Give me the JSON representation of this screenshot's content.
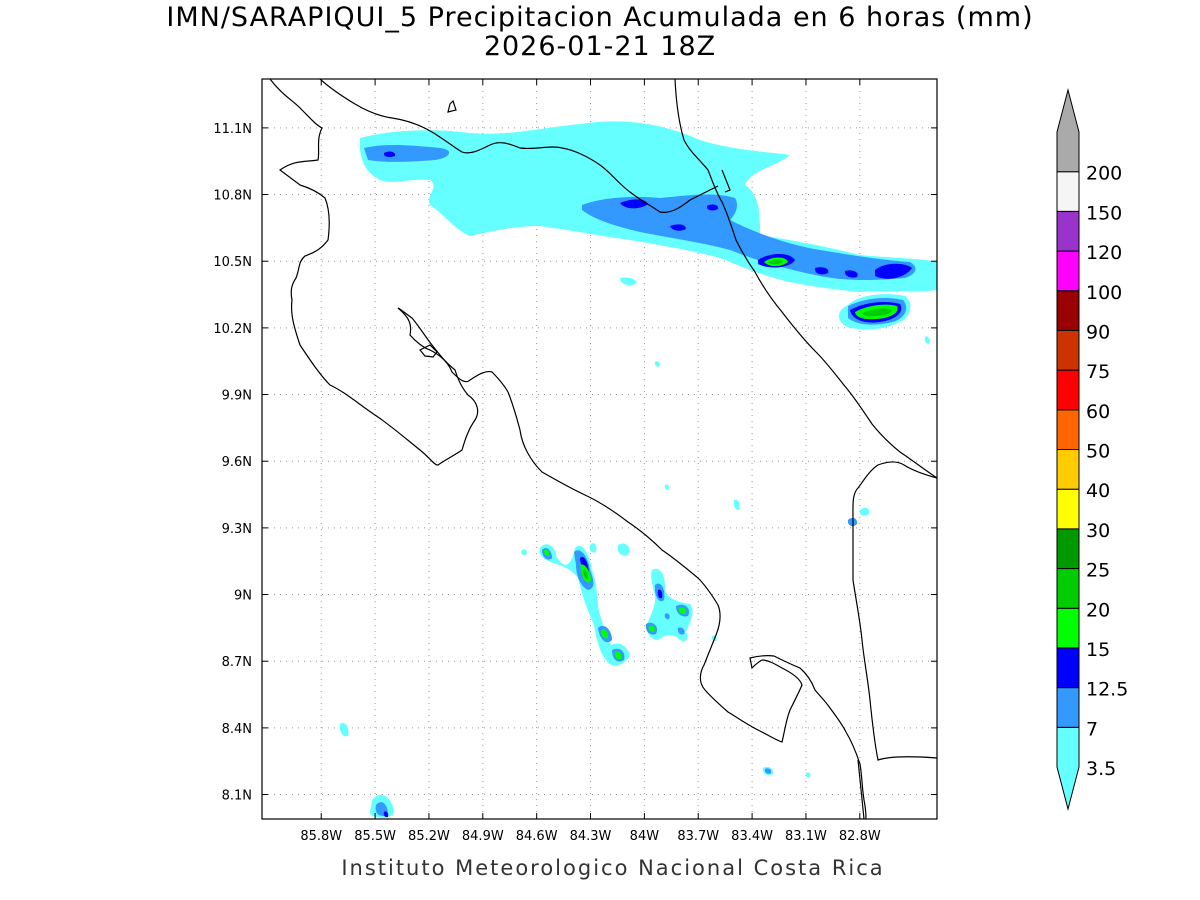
{
  "title": {
    "line1": "IMN/SARAPIQUI_5 Precipitacion Acumulada en 6 horas (mm)",
    "line2": "2026-01-21 18Z"
  },
  "credit": "Instituto Meteorologico Nacional Costa Rica",
  "map": {
    "lon_range": [
      -86.13,
      -82.37
    ],
    "lat_range": [
      7.99,
      11.32
    ],
    "lon_ticks": [
      {
        "value": -85.8,
        "label": "85.8W"
      },
      {
        "value": -85.5,
        "label": "85.5W"
      },
      {
        "value": -85.2,
        "label": "85.2W"
      },
      {
        "value": -84.9,
        "label": "84.9W"
      },
      {
        "value": -84.6,
        "label": "84.6W"
      },
      {
        "value": -84.3,
        "label": "84.3W"
      },
      {
        "value": -84.0,
        "label": "84W"
      },
      {
        "value": -83.7,
        "label": "83.7W"
      },
      {
        "value": -83.4,
        "label": "83.4W"
      },
      {
        "value": -83.1,
        "label": "83.1W"
      },
      {
        "value": -82.8,
        "label": "82.8W"
      }
    ],
    "lat_ticks": [
      {
        "value": 11.1,
        "label": "11.1N"
      },
      {
        "value": 10.8,
        "label": "10.8N"
      },
      {
        "value": 10.5,
        "label": "10.5N"
      },
      {
        "value": 10.2,
        "label": "10.2N"
      },
      {
        "value": 9.9,
        "label": "9.9N"
      },
      {
        "value": 9.6,
        "label": "9.6N"
      },
      {
        "value": 9.3,
        "label": "9.3N"
      },
      {
        "value": 9.0,
        "label": "9N"
      },
      {
        "value": 8.7,
        "label": "8.7N"
      },
      {
        "value": 8.4,
        "label": "8.4N"
      },
      {
        "value": 8.1,
        "label": "8.1N"
      }
    ],
    "grid": "dotted",
    "coastline_color": "#000000"
  },
  "legend": {
    "placement": "right",
    "levels": [
      {
        "label": "3.5",
        "color": "#66ffff"
      },
      {
        "label": "7",
        "color": "#3399ff"
      },
      {
        "label": "12.5",
        "color": "#0000ff"
      },
      {
        "label": "15",
        "color": "#00ff00"
      },
      {
        "label": "20",
        "color": "#00cc00"
      },
      {
        "label": "25",
        "color": "#009900"
      },
      {
        "label": "30",
        "color": "#ffff00"
      },
      {
        "label": "40",
        "color": "#ffcc00"
      },
      {
        "label": "50",
        "color": "#ff6600"
      },
      {
        "label": "60",
        "color": "#ff0000"
      },
      {
        "label": "75",
        "color": "#cc3300"
      },
      {
        "label": "90",
        "color": "#990000"
      },
      {
        "label": "100",
        "color": "#ff00ff"
      },
      {
        "label": "120",
        "color": "#9933cc"
      },
      {
        "label": "150",
        "color": "#f5f5f5"
      },
      {
        "label": "200",
        "color": "#aaaaaa"
      }
    ]
  }
}
